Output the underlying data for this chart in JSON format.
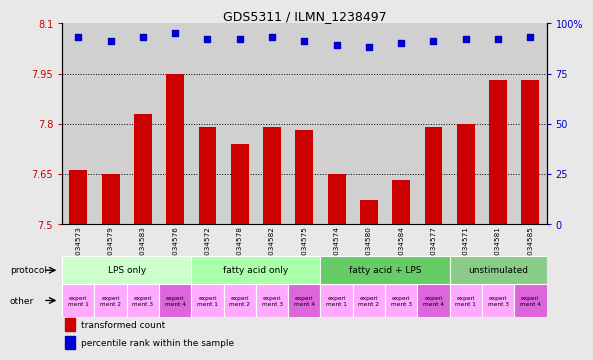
{
  "title": "GDS5311 / ILMN_1238497",
  "samples": [
    "GSM1034573",
    "GSM1034579",
    "GSM1034583",
    "GSM1034576",
    "GSM1034572",
    "GSM1034578",
    "GSM1034582",
    "GSM1034575",
    "GSM1034574",
    "GSM1034580",
    "GSM1034584",
    "GSM1034577",
    "GSM1034571",
    "GSM1034581",
    "GSM1034585"
  ],
  "bar_values": [
    7.66,
    7.65,
    7.83,
    7.95,
    7.79,
    7.74,
    7.79,
    7.78,
    7.65,
    7.57,
    7.63,
    7.79,
    7.8,
    7.93,
    7.93
  ],
  "dot_values": [
    93,
    91,
    93,
    95,
    92,
    92,
    93,
    91,
    89,
    88,
    90,
    91,
    92,
    92,
    93
  ],
  "ylim_left": [
    7.5,
    8.1
  ],
  "ylim_right": [
    0,
    100
  ],
  "yticks_left": [
    7.5,
    7.65,
    7.8,
    7.95,
    8.1
  ],
  "yticks_right": [
    0,
    25,
    50,
    75,
    100
  ],
  "ytick_labels_left": [
    "7.5",
    "7.65",
    "7.8",
    "7.95",
    "8.1"
  ],
  "ytick_labels_right": [
    "0",
    "25",
    "50",
    "75",
    "100%"
  ],
  "hlines": [
    7.65,
    7.8,
    7.95
  ],
  "bar_color": "#cc0000",
  "dot_color": "#0000cc",
  "bg_color": "#e8e8e8",
  "plot_bg": "#ffffff",
  "col_bg": "#d0d0d0",
  "groups": [
    {
      "label": "LPS only",
      "start": 0,
      "end": 4,
      "color": "#ccffcc"
    },
    {
      "label": "fatty acid only",
      "start": 4,
      "end": 8,
      "color": "#aaffaa"
    },
    {
      "label": "fatty acid + LPS",
      "start": 8,
      "end": 12,
      "color": "#66cc66"
    },
    {
      "label": "unstimulated",
      "start": 12,
      "end": 15,
      "color": "#88cc88"
    }
  ],
  "other_colors": [
    "#ffaaff",
    "#ffaaff",
    "#ffaaff",
    "#dd66dd",
    "#ffaaff",
    "#ffaaff",
    "#ffaaff",
    "#dd66dd",
    "#ffaaff",
    "#ffaaff",
    "#ffaaff",
    "#dd66dd",
    "#ffaaff",
    "#ffaaff",
    "#dd66dd"
  ],
  "other_labels": [
    "experi\nment 1",
    "experi\nment 2",
    "experi\nment 3",
    "experi\nment 4",
    "experi\nment 1",
    "experi\nment 2",
    "experi\nment 3",
    "experi\nment 4",
    "experi\nment 1",
    "experi\nment 2",
    "experi\nment 3",
    "experi\nment 4",
    "experi\nment 1",
    "experi\nment 3",
    "experi\nment 4"
  ],
  "legend_items": [
    {
      "color": "#cc0000",
      "label": "transformed count"
    },
    {
      "color": "#0000cc",
      "label": "percentile rank within the sample"
    }
  ],
  "fig_width": 5.8,
  "fig_height": 3.93
}
